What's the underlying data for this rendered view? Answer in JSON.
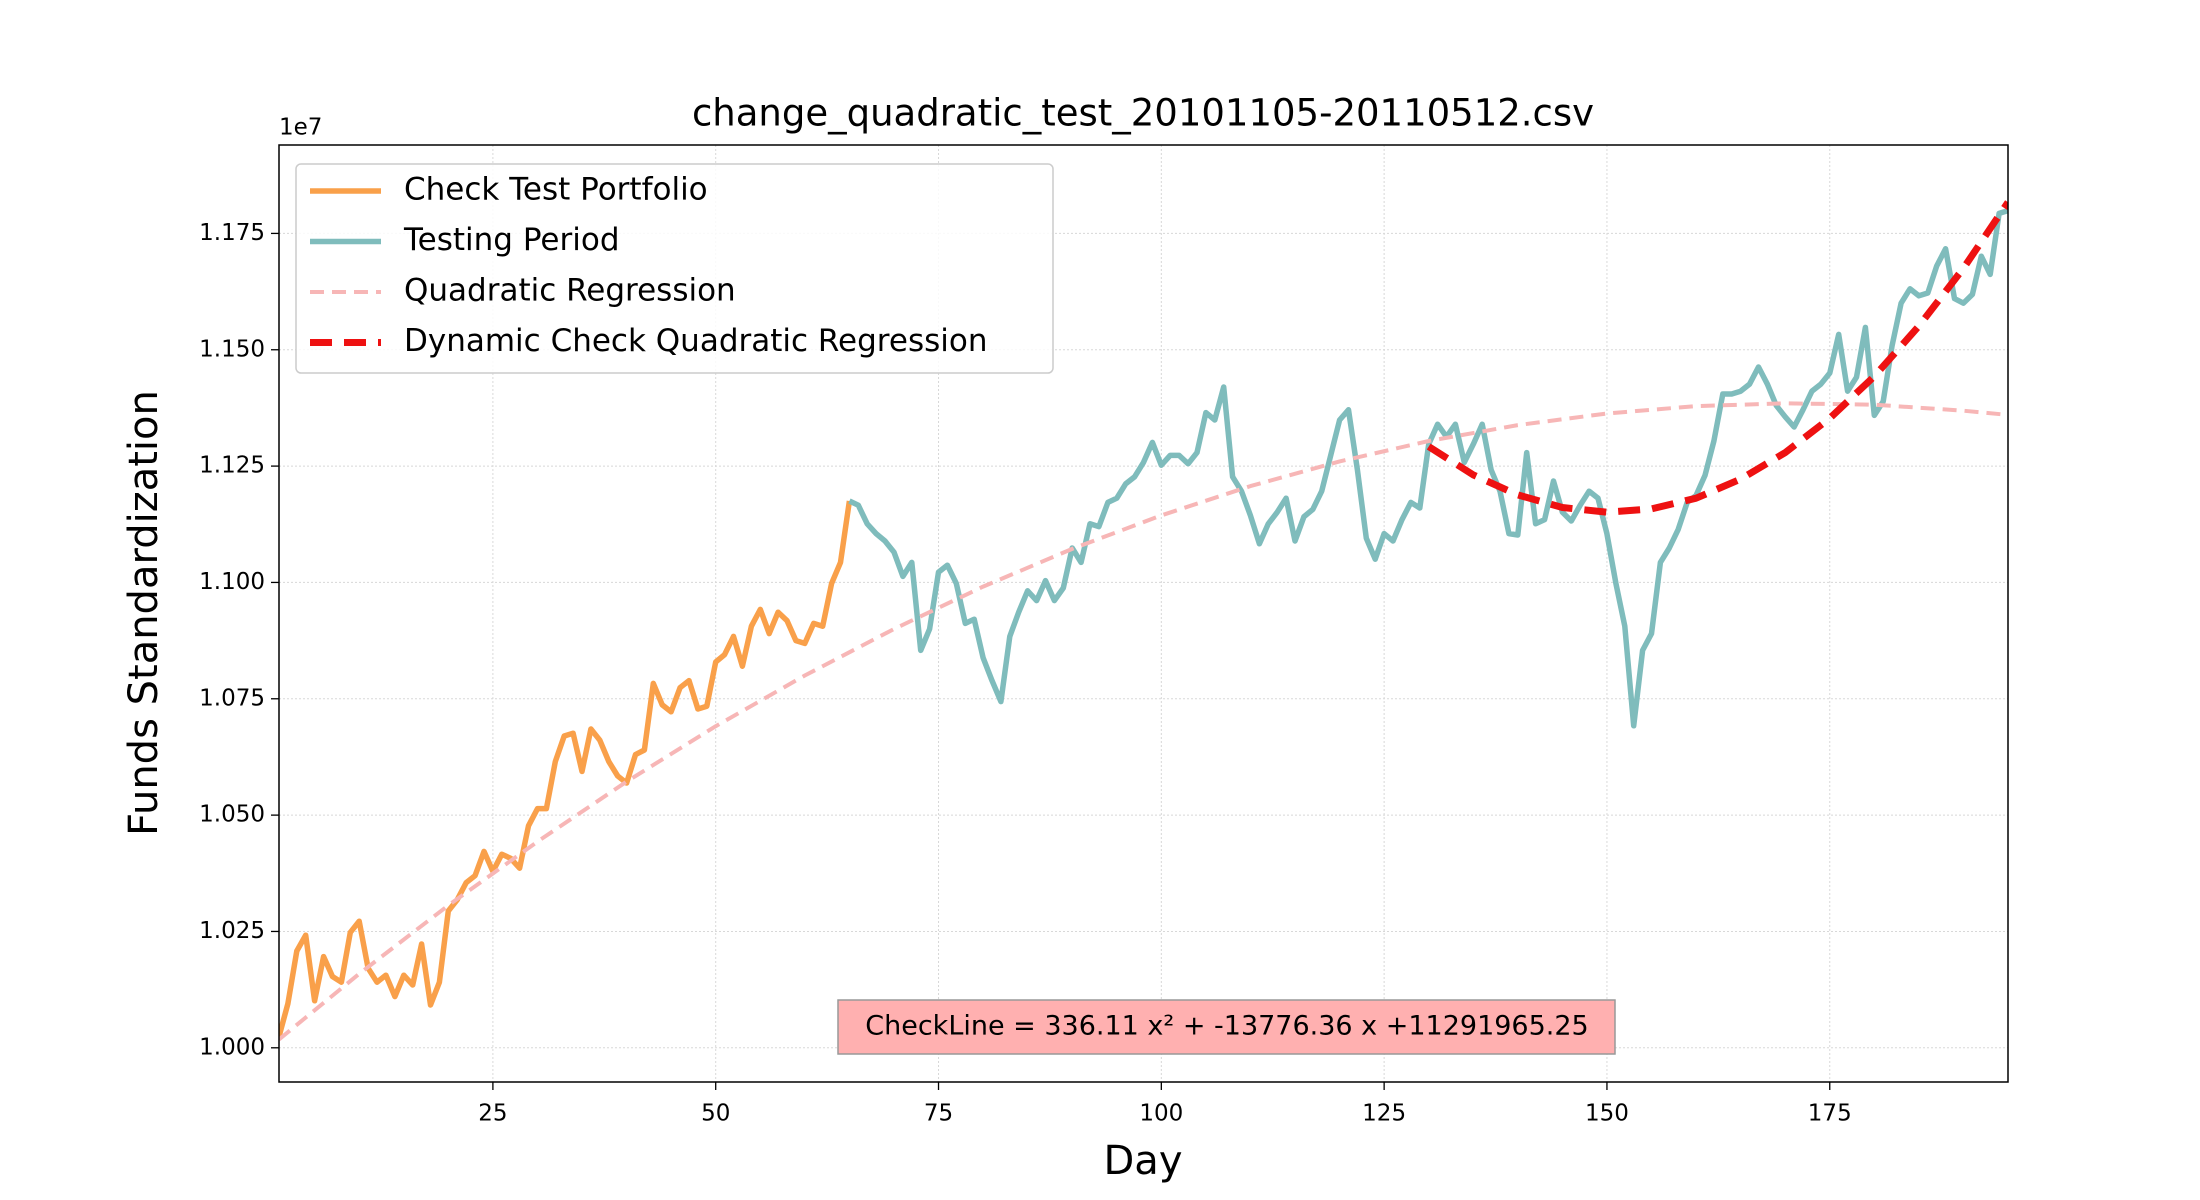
{
  "chart_data": {
    "type": "line",
    "title": "change_quadratic_test_20101105-20110512.csv",
    "xlabel": "Day",
    "ylabel": "Funds Standardization",
    "y_offset_label": "1e7",
    "annotation": "CheckLine = 336.11 x² + -13776.36 x +11291965.25",
    "xlim": [
      1,
      195
    ],
    "ylim": [
      0.99265,
      1.194
    ],
    "xticks": [
      25,
      50,
      75,
      100,
      125,
      150,
      175
    ],
    "yticks": [
      {
        "value": 1.0,
        "label": "1.000"
      },
      {
        "value": 1.025,
        "label": "1.025"
      },
      {
        "value": 1.05,
        "label": "1.050"
      },
      {
        "value": 1.075,
        "label": "1.075"
      },
      {
        "value": 1.1,
        "label": "1.100"
      },
      {
        "value": 1.125,
        "label": "1.125"
      },
      {
        "value": 1.15,
        "label": "1.150"
      },
      {
        "value": 1.175,
        "label": "1.175"
      }
    ],
    "grid": true,
    "legend": "upper left",
    "series": [
      {
        "name": "Check Test Portfolio",
        "color": "#f9a04a",
        "dash": false,
        "x": [
          1,
          2,
          3,
          4,
          5,
          6,
          7,
          8,
          9,
          10,
          11,
          12,
          13,
          14,
          15,
          16,
          17,
          18,
          19,
          20,
          21,
          22,
          23,
          24,
          25,
          26,
          27,
          28,
          29,
          30,
          31,
          32,
          33,
          34,
          35,
          36,
          37,
          38,
          39,
          40,
          41,
          42,
          43,
          44,
          45,
          46,
          47,
          48,
          49,
          50,
          51,
          52,
          53,
          54,
          55,
          56,
          57,
          58,
          59,
          60,
          61,
          62,
          63,
          64,
          65
        ],
        "values": [
          1.0024,
          1.0095,
          1.0208,
          1.0242,
          1.0101,
          1.0196,
          1.0153,
          1.0141,
          1.0248,
          1.0272,
          1.0171,
          1.0141,
          1.0156,
          1.011,
          1.0156,
          1.0135,
          1.0223,
          1.0092,
          1.0141,
          1.0294,
          1.0318,
          1.0355,
          1.037,
          1.0422,
          1.0379,
          1.0416,
          1.0407,
          1.0386,
          1.0477,
          1.0514,
          1.0514,
          1.0615,
          1.067,
          1.0676,
          1.0594,
          1.0685,
          1.0661,
          1.0615,
          1.0584,
          1.0569,
          1.063,
          1.064,
          1.0783,
          1.0737,
          1.0722,
          1.0774,
          1.0789,
          1.0728,
          1.0734,
          1.0829,
          1.0845,
          1.0884,
          1.082,
          1.0906,
          1.0942,
          1.089,
          1.0936,
          1.0918,
          1.0875,
          1.0869,
          1.0912,
          1.0906,
          1.0998,
          1.1043,
          1.1175
        ]
      },
      {
        "name": "Testing Period",
        "color": "#7fbcbc",
        "dash": false,
        "x": [
          65,
          66,
          67,
          68,
          69,
          70,
          71,
          72,
          73,
          74,
          75,
          76,
          77,
          78,
          79,
          80,
          81,
          82,
          83,
          84,
          85,
          86,
          87,
          88,
          89,
          90,
          91,
          92,
          93,
          94,
          95,
          96,
          97,
          98,
          99,
          100,
          101,
          102,
          103,
          104,
          105,
          106,
          107,
          108,
          109,
          110,
          111,
          112,
          113,
          114,
          115,
          116,
          117,
          118,
          119,
          120,
          121,
          122,
          123,
          124,
          125,
          126,
          127,
          128,
          129,
          130,
          131,
          132,
          133,
          134,
          135,
          136,
          137,
          138,
          139,
          140,
          141,
          142,
          143,
          144,
          145,
          146,
          147,
          148,
          149,
          150,
          151,
          152,
          153,
          154,
          155,
          156,
          157,
          158,
          159,
          160,
          161,
          162,
          163,
          164,
          165,
          166,
          167,
          168,
          169,
          170,
          171,
          172,
          173,
          174,
          175,
          176,
          177,
          178,
          179,
          180,
          181,
          182,
          183,
          184,
          185,
          186,
          187,
          188,
          189,
          190,
          191,
          192,
          193,
          194,
          195
        ],
        "values": [
          1.1175,
          1.1166,
          1.1126,
          1.1105,
          1.1089,
          1.1065,
          1.1013,
          1.1043,
          1.0854,
          1.09,
          1.1022,
          1.1037,
          1.0998,
          1.0912,
          1.0921,
          1.0838,
          1.0789,
          1.0744,
          1.0884,
          1.0936,
          1.0982,
          1.0961,
          1.1004,
          1.0961,
          1.0988,
          1.1074,
          1.1043,
          1.1126,
          1.112,
          1.1172,
          1.1181,
          1.1212,
          1.1227,
          1.1258,
          1.1301,
          1.1252,
          1.1273,
          1.1273,
          1.1255,
          1.1279,
          1.1365,
          1.1349,
          1.142,
          1.1227,
          1.1196,
          1.1144,
          1.1083,
          1.1126,
          1.1151,
          1.1181,
          1.1089,
          1.1141,
          1.1157,
          1.1196,
          1.1273,
          1.1349,
          1.1371,
          1.1242,
          1.1095,
          1.105,
          1.1105,
          1.1089,
          1.1135,
          1.1172,
          1.116,
          1.1297,
          1.134,
          1.1313,
          1.134,
          1.1258,
          1.1297,
          1.134,
          1.1242,
          1.1196,
          1.1105,
          1.1102,
          1.1279,
          1.1126,
          1.1135,
          1.1218,
          1.1151,
          1.1132,
          1.1166,
          1.1196,
          1.1181,
          1.1105,
          1.0998,
          1.0906,
          1.0692,
          1.0854,
          1.089,
          1.1043,
          1.1074,
          1.1114,
          1.1172,
          1.1187,
          1.123,
          1.1304,
          1.1405,
          1.1405,
          1.1411,
          1.1426,
          1.1463,
          1.1426,
          1.138,
          1.1356,
          1.1334,
          1.1371,
          1.1411,
          1.1426,
          1.145,
          1.1533,
          1.1411,
          1.1441,
          1.1548,
          1.1359,
          1.1389,
          1.1509,
          1.16,
          1.1631,
          1.1616,
          1.1622,
          1.168,
          1.1717,
          1.161,
          1.16,
          1.1619,
          1.1701,
          1.1662,
          1.1793,
          1.1799
        ]
      },
      {
        "name": "Quadratic Regression",
        "color": "#f7b6b6",
        "dash": true,
        "x": [
          1,
          10,
          20,
          30,
          40,
          50,
          60,
          70,
          80,
          90,
          100,
          110,
          120,
          130,
          140,
          150,
          160,
          170,
          180,
          190,
          195
        ],
        "values": [
          1.0018,
          1.0159,
          1.0306,
          1.0443,
          1.0572,
          1.0691,
          1.08,
          1.09,
          1.0991,
          1.1072,
          1.1144,
          1.1207,
          1.126,
          1.1304,
          1.1338,
          1.1363,
          1.1379,
          1.1385,
          1.1382,
          1.1369,
          1.136
        ]
      },
      {
        "name": "Dynamic Check Quadratic Regression",
        "color": "#ee1111",
        "dash": true,
        "x": [
          130,
          135,
          140,
          145,
          150,
          155,
          160,
          165,
          170,
          175,
          180,
          185,
          190,
          195
        ],
        "values": [
          1.1292,
          1.1231,
          1.1188,
          1.1161,
          1.1151,
          1.1158,
          1.1181,
          1.1222,
          1.1279,
          1.1353,
          1.1443,
          1.1551,
          1.1675,
          1.1817
        ]
      }
    ]
  }
}
